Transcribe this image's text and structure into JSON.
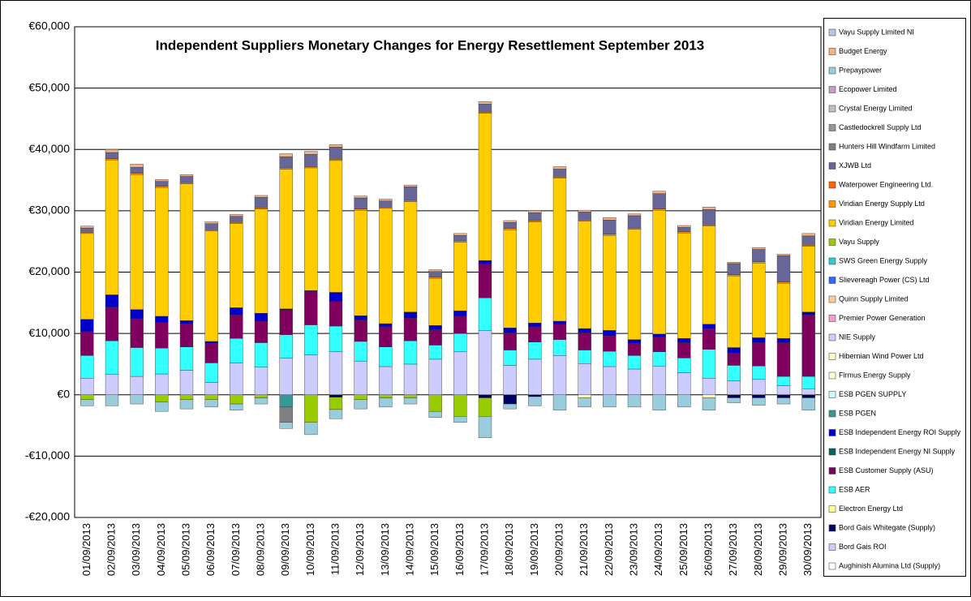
{
  "chart_data": {
    "type": "stacked_bar",
    "title": "Independent Suppliers Monetary Changes for Energy Resettlement September 2013",
    "categories": [
      "01/09/2013",
      "02/09/2013",
      "03/09/2013",
      "04/09/2013",
      "05/09/2013",
      "06/09/2013",
      "07/09/2013",
      "08/09/2013",
      "09/09/2013",
      "10/09/2013",
      "11/09/2013",
      "12/09/2013",
      "13/09/2013",
      "14/09/2013",
      "15/09/2013",
      "16/09/2013",
      "17/09/2013",
      "18/09/2013",
      "19/09/2013",
      "20/09/2013",
      "21/09/2013",
      "22/09/2013",
      "23/09/2013",
      "24/09/2013",
      "25/09/2013",
      "26/09/2013",
      "27/09/2013",
      "28/09/2013",
      "29/09/2013",
      "30/09/2013"
    ],
    "ylim": [
      -20000,
      60000
    ],
    "yticks": [
      {
        "value": -20000,
        "label": "-€20,000"
      },
      {
        "value": -10000,
        "label": "-€10,000"
      },
      {
        "value": 0,
        "label": "€0"
      },
      {
        "value": 10000,
        "label": "€10,000"
      },
      {
        "value": 20000,
        "label": "€20,000"
      },
      {
        "value": 30000,
        "label": "€30,000"
      },
      {
        "value": 40000,
        "label": "€40,000"
      },
      {
        "value": 50000,
        "label": "€50,000"
      },
      {
        "value": 60000,
        "label": "€60,000"
      }
    ],
    "grid": true,
    "legend": "right",
    "series": [
      {
        "name": "Aughinish Alumina Ltd (Supply)",
        "color": "#ffffff",
        "values": [
          0,
          0,
          0,
          0,
          0,
          0,
          0,
          0,
          0,
          0,
          0,
          0,
          0,
          0,
          0,
          0,
          0,
          0,
          0,
          0,
          0,
          0,
          0,
          0,
          0,
          0,
          0,
          0,
          0,
          0
        ]
      },
      {
        "name": "Bord Gais ROI",
        "color": "#ccccff",
        "values": [
          2700,
          3300,
          3000,
          3400,
          4000,
          2000,
          5200,
          4500,
          6000,
          6500,
          7000,
          5500,
          4600,
          5000,
          5800,
          7000,
          10500,
          4800,
          5800,
          6400,
          5100,
          4600,
          4200,
          4700,
          3600,
          2700,
          2300,
          2500,
          1500,
          1000
        ]
      },
      {
        "name": "Bord Gais Whitegate (Supply)",
        "color": "#000066",
        "values": [
          0,
          0,
          0,
          0,
          0,
          0,
          0,
          0,
          0,
          0,
          -400,
          0,
          0,
          0,
          0,
          0,
          -500,
          -1500,
          -300,
          0,
          0,
          0,
          0,
          0,
          0,
          0,
          -500,
          -500,
          -500,
          -500
        ]
      },
      {
        "name": "Electron Energy Ltd",
        "color": "#ffff99",
        "values": [
          0,
          0,
          0,
          0,
          0,
          0,
          0,
          0,
          0,
          0,
          0,
          0,
          0,
          0,
          0,
          0,
          0,
          0,
          0,
          0,
          -500,
          0,
          0,
          0,
          0,
          -500,
          0,
          0,
          0,
          0
        ]
      },
      {
        "name": "ESB AER",
        "color": "#33ffff",
        "values": [
          3700,
          5500,
          4700,
          4200,
          3800,
          3200,
          4000,
          4000,
          3800,
          4900,
          4200,
          3200,
          3200,
          3800,
          2300,
          3000,
          5300,
          2500,
          2800,
          2600,
          2200,
          2500,
          2200,
          2300,
          2400,
          4700,
          2500,
          2200,
          1500,
          2000
        ]
      },
      {
        "name": "ESB Customer  Supply (ASU)",
        "color": "#800060",
        "values": [
          3900,
          5500,
          4700,
          4200,
          3800,
          3200,
          3800,
          3500,
          4000,
          5500,
          4000,
          3500,
          3300,
          3700,
          2500,
          2800,
          5500,
          2800,
          2500,
          2500,
          2800,
          2500,
          2000,
          2400,
          2500,
          3400,
          2000,
          3800,
          5500,
          10000
        ]
      },
      {
        "name": "ESB Independent  Energy NI Supply",
        "color": "#006666",
        "values": [
          0,
          0,
          0,
          0,
          0,
          0,
          0,
          0,
          0,
          0,
          0,
          0,
          0,
          0,
          0,
          0,
          0,
          0,
          0,
          0,
          0,
          0,
          0,
          0,
          0,
          0,
          0,
          0,
          0,
          0
        ]
      },
      {
        "name": "ESB Independent  Energy  ROI Supply",
        "color": "#0000cc",
        "values": [
          2000,
          2000,
          1500,
          1000,
          500,
          300,
          1200,
          1300,
          200,
          100,
          1500,
          700,
          500,
          1000,
          700,
          900,
          600,
          800,
          600,
          500,
          700,
          900,
          600,
          500,
          700,
          700,
          900,
          800,
          700,
          500
        ]
      },
      {
        "name": "ESB PGEN",
        "color": "#339999",
        "values": [
          0,
          0,
          0,
          0,
          0,
          0,
          0,
          0,
          -2000,
          0,
          0,
          0,
          0,
          0,
          0,
          0,
          0,
          0,
          0,
          0,
          0,
          0,
          0,
          0,
          0,
          0,
          0,
          0,
          0,
          0
        ]
      },
      {
        "name": "ESB PGEN SUPPLY",
        "color": "#ccffff",
        "values": [
          0,
          0,
          0,
          0,
          0,
          0,
          0,
          0,
          0,
          0,
          0,
          0,
          0,
          0,
          0,
          0,
          0,
          0,
          0,
          0,
          0,
          0,
          0,
          0,
          0,
          0,
          0,
          0,
          0,
          0
        ]
      },
      {
        "name": "Firmus Energy Supply",
        "color": "#ffffcc",
        "values": [
          0,
          0,
          0,
          0,
          0,
          0,
          0,
          0,
          0,
          0,
          0,
          0,
          0,
          0,
          0,
          0,
          0,
          0,
          0,
          0,
          0,
          0,
          0,
          0,
          0,
          0,
          0,
          0,
          0,
          0
        ]
      },
      {
        "name": "Hibernian Wind Power Ltd",
        "color": "#ffffcc",
        "values": [
          0,
          0,
          0,
          0,
          0,
          0,
          0,
          0,
          0,
          0,
          0,
          0,
          0,
          0,
          0,
          0,
          0,
          0,
          0,
          0,
          0,
          0,
          0,
          0,
          0,
          0,
          0,
          0,
          0,
          0
        ]
      },
      {
        "name": "NIE Supply",
        "color": "#ccccff",
        "values": [
          0,
          0,
          0,
          0,
          0,
          0,
          0,
          0,
          0,
          0,
          0,
          0,
          0,
          0,
          0,
          0,
          0,
          0,
          0,
          0,
          0,
          0,
          0,
          0,
          0,
          0,
          0,
          0,
          0,
          0
        ]
      },
      {
        "name": "Premier Power Generation",
        "color": "#ff99cc",
        "values": [
          0,
          0,
          0,
          0,
          0,
          0,
          0,
          0,
          0,
          0,
          0,
          0,
          0,
          0,
          0,
          0,
          0,
          0,
          0,
          0,
          0,
          0,
          0,
          0,
          0,
          0,
          0,
          0,
          0,
          0
        ]
      },
      {
        "name": "Quinn Supply Limited",
        "color": "#ffcc99",
        "values": [
          0,
          0,
          0,
          0,
          0,
          0,
          0,
          0,
          0,
          0,
          0,
          0,
          0,
          0,
          0,
          0,
          0,
          0,
          0,
          0,
          0,
          0,
          0,
          0,
          0,
          0,
          0,
          0,
          0,
          0
        ]
      },
      {
        "name": "Slievereagh Power (CS) Ltd",
        "color": "#3366ff",
        "values": [
          0,
          0,
          0,
          0,
          0,
          0,
          0,
          0,
          0,
          0,
          0,
          0,
          0,
          0,
          0,
          0,
          0,
          0,
          0,
          0,
          0,
          0,
          0,
          0,
          0,
          0,
          0,
          0,
          0,
          0
        ]
      },
      {
        "name": "SWS Green Energy Supply",
        "color": "#33cccc",
        "values": [
          0,
          0,
          0,
          0,
          0,
          0,
          0,
          0,
          0,
          0,
          0,
          0,
          0,
          0,
          0,
          0,
          0,
          0,
          0,
          0,
          0,
          0,
          0,
          0,
          0,
          0,
          0,
          0,
          0,
          0
        ]
      },
      {
        "name": "Vayu Supply",
        "color": "#99cc00",
        "values": [
          -800,
          0,
          0,
          -1200,
          -800,
          -800,
          -1500,
          -500,
          0,
          -4500,
          -2000,
          -800,
          -500,
          -500,
          -2700,
          -3500,
          -3000,
          0,
          0,
          0,
          0,
          0,
          0,
          0,
          0,
          0,
          0,
          0,
          0,
          0
        ]
      },
      {
        "name": "Viridian Energy Limited",
        "color": "#ffcc00",
        "values": [
          14000,
          22000,
          22000,
          21000,
          22300,
          18000,
          13700,
          17000,
          22800,
          20000,
          21500,
          17200,
          18800,
          18000,
          7700,
          11200,
          24000,
          16000,
          16500,
          23300,
          17500,
          15500,
          18000,
          20200,
          17200,
          16000,
          11700,
          12200,
          9000,
          10700
        ]
      },
      {
        "name": "Viridian Energy Supply Ltd",
        "color": "#ff9900",
        "values": [
          200,
          200,
          200,
          200,
          200,
          200,
          200,
          200,
          200,
          200,
          200,
          200,
          200,
          200,
          200,
          200,
          200,
          200,
          200,
          200,
          200,
          200,
          200,
          200,
          200,
          200,
          200,
          200,
          200,
          200
        ]
      },
      {
        "name": "Waterpower Engineering Ltd.",
        "color": "#ff6600",
        "values": [
          0,
          0,
          0,
          0,
          0,
          0,
          0,
          0,
          0,
          0,
          0,
          0,
          0,
          0,
          0,
          0,
          0,
          0,
          0,
          0,
          0,
          0,
          0,
          0,
          0,
          0,
          0,
          0,
          0,
          0
        ]
      },
      {
        "name": "XJWB Ltd",
        "color": "#666699",
        "values": [
          700,
          1000,
          1000,
          800,
          1000,
          1000,
          1000,
          1700,
          1800,
          2000,
          2000,
          1800,
          1000,
          2200,
          900,
          900,
          1300,
          1000,
          1300,
          1300,
          1300,
          2300,
          2000,
          2500,
          700,
          2500,
          1800,
          2000,
          4300,
          1500
        ]
      },
      {
        "name": "Hunters Hill Windfarm  Limited",
        "color": "#808080",
        "values": [
          0,
          0,
          0,
          0,
          0,
          0,
          0,
          0,
          -2500,
          0,
          0,
          0,
          0,
          0,
          0,
          0,
          0,
          0,
          0,
          0,
          0,
          0,
          0,
          0,
          0,
          0,
          0,
          0,
          0,
          0
        ]
      },
      {
        "name": "Castledockrell Supply Ltd",
        "color": "#969696",
        "values": [
          0,
          0,
          0,
          0,
          0,
          0,
          0,
          0,
          0,
          0,
          0,
          0,
          0,
          0,
          0,
          0,
          0,
          0,
          0,
          0,
          0,
          0,
          0,
          0,
          0,
          0,
          0,
          0,
          0,
          0
        ]
      },
      {
        "name": "Crystal Energy Limited",
        "color": "#c0c0c0",
        "values": [
          0,
          0,
          0,
          0,
          0,
          0,
          0,
          0,
          0,
          0,
          0,
          0,
          0,
          0,
          0,
          0,
          0,
          0,
          0,
          0,
          0,
          0,
          0,
          0,
          0,
          0,
          0,
          0,
          0,
          0
        ]
      },
      {
        "name": "Ecopower Limited",
        "color": "#cc99cc",
        "values": [
          0,
          0,
          0,
          0,
          0,
          0,
          0,
          0,
          0,
          0,
          0,
          0,
          0,
          0,
          0,
          0,
          0,
          0,
          0,
          0,
          0,
          0,
          0,
          0,
          0,
          0,
          0,
          0,
          0,
          0
        ]
      },
      {
        "name": "Prepaypower",
        "color": "#99ccdd",
        "values": [
          -1000,
          -1800,
          -1500,
          -1500,
          -1500,
          -1200,
          -1000,
          -1000,
          -1000,
          -2000,
          -1500,
          -1500,
          -1500,
          -1000,
          -1000,
          -1000,
          -3500,
          -800,
          -1500,
          -2500,
          -1500,
          -2000,
          -2000,
          -2500,
          -2000,
          -2000,
          -800,
          -1200,
          -1000,
          -2000
        ]
      },
      {
        "name": "Budget Energy",
        "color": "#f4b183",
        "values": [
          300,
          500,
          500,
          300,
          300,
          300,
          300,
          300,
          500,
          500,
          400,
          300,
          300,
          300,
          300,
          300,
          400,
          300,
          300,
          400,
          300,
          400,
          300,
          400,
          300,
          400,
          200,
          300,
          200,
          400
        ]
      },
      {
        "name": "Vayu Supply Limited NI",
        "color": "#b4c7e7",
        "values": [
          0,
          0,
          0,
          0,
          0,
          0,
          0,
          0,
          0,
          0,
          0,
          0,
          0,
          0,
          0,
          0,
          0,
          0,
          0,
          0,
          0,
          0,
          0,
          0,
          0,
          0,
          0,
          0,
          0,
          0
        ]
      }
    ]
  }
}
